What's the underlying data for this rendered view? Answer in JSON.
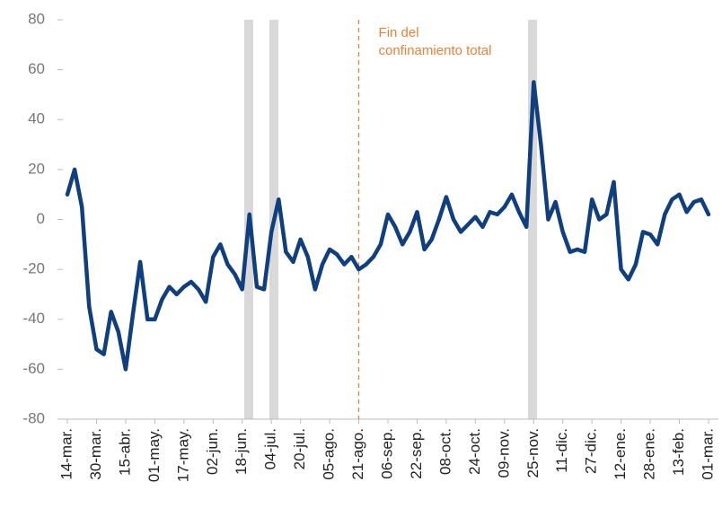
{
  "chart_data": {
    "type": "line",
    "categories": [
      "14-mar.",
      null,
      null,
      null,
      "30-mar.",
      null,
      null,
      null,
      "15-abr.",
      null,
      null,
      null,
      "01-may.",
      null,
      null,
      null,
      "17-may.",
      null,
      null,
      null,
      "02-jun.",
      null,
      null,
      null,
      "18-jun.",
      null,
      null,
      null,
      "04-jul.",
      null,
      null,
      null,
      "20-jul.",
      null,
      null,
      null,
      "05-ago.",
      null,
      null,
      null,
      "21-ago.",
      null,
      null,
      null,
      "06-sep.",
      null,
      null,
      null,
      "22-sep.",
      null,
      null,
      null,
      "08-oct.",
      null,
      null,
      null,
      "24-oct.",
      null,
      null,
      null,
      "09-nov.",
      null,
      null,
      null,
      "25-nov.",
      null,
      null,
      null,
      "11-dic.",
      null,
      null,
      null,
      "27-dic.",
      null,
      null,
      null,
      "12-ene.",
      null,
      null,
      null,
      "28-ene.",
      null,
      null,
      null,
      "13-feb.",
      null,
      null,
      null,
      "01-mar."
    ],
    "series": [
      {
        "color": "#0f3f7e",
        "values": [
          10,
          20,
          5,
          -35,
          -52,
          -54,
          -37,
          -45,
          -60,
          -38,
          -17,
          -40,
          -40,
          -32,
          -27,
          -30,
          -27,
          -25,
          -28,
          -33,
          -15,
          -10,
          -18,
          -22,
          -28,
          2,
          -27,
          -28,
          -5,
          8,
          -13,
          -17,
          -8,
          -15,
          -28,
          -18,
          -12,
          -14,
          -18,
          -15,
          -20,
          -18,
          -15,
          -10,
          2,
          -3,
          -10,
          -5,
          3,
          -12,
          -8,
          0,
          9,
          0,
          -5,
          -2,
          1,
          -3,
          3,
          2,
          5,
          10,
          3,
          -3,
          55,
          30,
          0,
          7,
          -5,
          -13,
          -12,
          -13,
          8,
          0,
          2,
          15,
          -20,
          -24,
          -18,
          -5,
          -6,
          -10,
          2,
          8,
          10,
          3,
          7,
          8,
          2
        ]
      }
    ],
    "ylim": [
      -80,
      80
    ],
    "yticks": [
      -80,
      -60,
      -40,
      -20,
      0,
      20,
      40,
      60,
      80
    ],
    "annotation": {
      "text": "Fin del confinamiento total",
      "x": "21-ago."
    }
  }
}
